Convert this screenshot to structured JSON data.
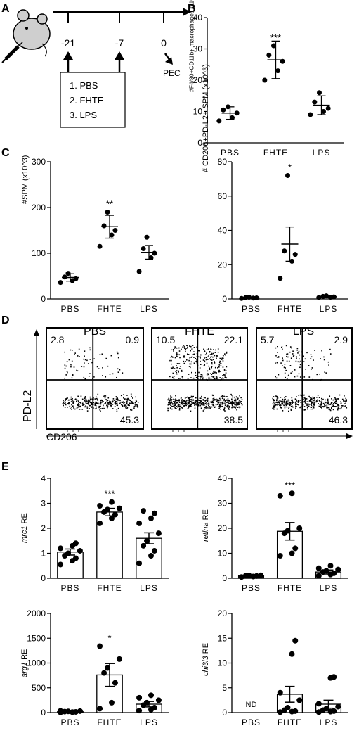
{
  "panels": {
    "A": "A",
    "B": "B",
    "C": "C",
    "D": "D",
    "E": "E"
  },
  "timeline": {
    "days": [
      "-21",
      "-7",
      "0"
    ],
    "endpoint": "PEC",
    "treatments": [
      "1. PBS",
      "2. FHTE",
      "3. LPS"
    ]
  },
  "common": {
    "groups": [
      "PBS",
      "FHTE",
      "LPS"
    ]
  },
  "flow": {
    "ylabel": "PD-L2",
    "xlabel": "CD206",
    "plots": [
      {
        "name": "PBS",
        "ul": "2.8",
        "ur": "0.9",
        "lr": "45.3"
      },
      {
        "name": "FHTE",
        "ul": "10.5",
        "ur": "22.1",
        "lr": "38.5"
      },
      {
        "name": "LPS",
        "ul": "5.7",
        "ur": "2.9",
        "lr": "46.3"
      }
    ]
  },
  "chart_data": [
    {
      "id": "B",
      "type": "scatter",
      "ylabel": "#F4/80+CD11b+ macrophages (x10^6)",
      "yticks": [
        "0",
        "10",
        "20",
        "30",
        "40"
      ],
      "ylim": [
        0,
        40
      ],
      "categories": [
        "PBS",
        "FHTE",
        "LPS"
      ],
      "points": [
        [
          7,
          8,
          9.5,
          10.5,
          11.5
        ],
        [
          20,
          23,
          26,
          28,
          31
        ],
        [
          9,
          10,
          11,
          13,
          16
        ]
      ],
      "mean": [
        9.5,
        26.5,
        12
      ],
      "err": [
        2,
        6,
        3
      ],
      "stars": [
        "",
        "***",
        ""
      ]
    },
    {
      "id": "C1",
      "type": "scatter",
      "ylabel": "#SPM (x10^3)",
      "yticks": [
        "0",
        "100",
        "200",
        "300"
      ],
      "ylim": [
        0,
        300
      ],
      "categories": [
        "PBS",
        "FHTE",
        "LPS"
      ],
      "points": [
        [
          36,
          40,
          44,
          48,
          56
        ],
        [
          115,
          140,
          150,
          160,
          190
        ],
        [
          60,
          90,
          100,
          110,
          135
        ]
      ],
      "mean": [
        47,
        158,
        102
      ],
      "err": [
        8,
        25,
        15
      ],
      "stars": [
        "",
        "**",
        ""
      ]
    },
    {
      "id": "C2",
      "type": "scatter",
      "ylabel": "# CD206+PD-L2+ SPM (x10^3)",
      "yticks": [
        "0",
        "20",
        "40",
        "60",
        "80"
      ],
      "ylim": [
        0,
        80
      ],
      "categories": [
        "PBS",
        "FHTE",
        "LPS"
      ],
      "points": [
        [
          0.3,
          0.5,
          0.6,
          0.8,
          1
        ],
        [
          12,
          22,
          26,
          28,
          72
        ],
        [
          0.8,
          1,
          1.2,
          1.5,
          1.8
        ]
      ],
      "mean": [
        0.6,
        32,
        1.3
      ],
      "err": [
        0.3,
        10,
        0.4
      ],
      "stars": [
        "",
        "*",
        ""
      ]
    },
    {
      "id": "E1",
      "type": "bar",
      "ylabel": "mrc1 RE",
      "ylabel_i": "mrc1",
      "ylabel_r": " RE",
      "yticks": [
        "0",
        "1",
        "2",
        "3",
        "4"
      ],
      "ylim": [
        0,
        4
      ],
      "categories": [
        "PBS",
        "FHTE",
        "LPS"
      ],
      "values": [
        1.05,
        2.65,
        1.6
      ],
      "err": [
        0.12,
        0.15,
        0.22
      ],
      "points": [
        [
          0.55,
          0.7,
          0.8,
          0.9,
          1.0,
          1.1,
          1.2,
          1.3,
          1.4
        ],
        [
          2.2,
          2.4,
          2.55,
          2.65,
          2.75,
          2.8,
          2.9,
          3.05
        ],
        [
          0.6,
          0.9,
          1.1,
          1.3,
          1.5,
          1.8,
          2.2,
          2.4,
          2.6,
          2.7
        ]
      ],
      "stars": [
        "",
        "***",
        ""
      ]
    },
    {
      "id": "E2",
      "type": "bar",
      "ylabel": "retlna RE",
      "ylabel_i": "retlna",
      "ylabel_r": " RE",
      "yticks": [
        "0",
        "10",
        "20",
        "30",
        "40"
      ],
      "ylim": [
        0,
        40
      ],
      "categories": [
        "PBS",
        "FHTE",
        "LPS"
      ],
      "values": [
        1.0,
        18.8,
        2.5
      ],
      "err": [
        0.3,
        3.5,
        0.8
      ],
      "points": [
        [
          0.5,
          0.7,
          0.9,
          1.0,
          1.1,
          1.2
        ],
        [
          9,
          10,
          12,
          18,
          19,
          20,
          33,
          34
        ],
        [
          1,
          1.5,
          2,
          2.5,
          3,
          3.5,
          4,
          5
        ]
      ],
      "stars": [
        "",
        "***",
        ""
      ]
    },
    {
      "id": "E3",
      "type": "bar",
      "ylabel": "arg1 RE",
      "ylabel_i": "arg1",
      "ylabel_r": " RE",
      "yticks": [
        "0",
        "500",
        "1000",
        "1500",
        "2000"
      ],
      "ylim": [
        0,
        2000
      ],
      "categories": [
        "PBS",
        "FHTE",
        "LPS"
      ],
      "values": [
        20,
        760,
        170
      ],
      "err": [
        10,
        230,
        55
      ],
      "points": [
        [
          5,
          10,
          15,
          20,
          25,
          30,
          35
        ],
        [
          80,
          200,
          600,
          800,
          900,
          1080,
          1340
        ],
        [
          40,
          60,
          100,
          150,
          200,
          250,
          300,
          350
        ]
      ],
      "stars": [
        "",
        "*",
        ""
      ]
    },
    {
      "id": "E4",
      "type": "bar",
      "ylabel": "chi3l3 RE",
      "ylabel_i": "chi3l3",
      "ylabel_r": " RE",
      "yticks": [
        "0",
        "5",
        "10",
        "15",
        "20"
      ],
      "ylim": [
        0,
        20
      ],
      "categories": [
        "PBS",
        "FHTE",
        "LPS"
      ],
      "values": [
        0,
        3.7,
        1.7
      ],
      "err": [
        0,
        1.6,
        0.8
      ],
      "points": [
        [],
        [
          0.1,
          0.2,
          0.3,
          0.5,
          1.0,
          2.5,
          4.0,
          11.8,
          14.5
        ],
        [
          0.1,
          0.2,
          0.3,
          0.5,
          0.8,
          1.2,
          1.8,
          7.0,
          7.2
        ]
      ],
      "stars": [
        "",
        "",
        ""
      ],
      "na_label": "ND"
    }
  ]
}
